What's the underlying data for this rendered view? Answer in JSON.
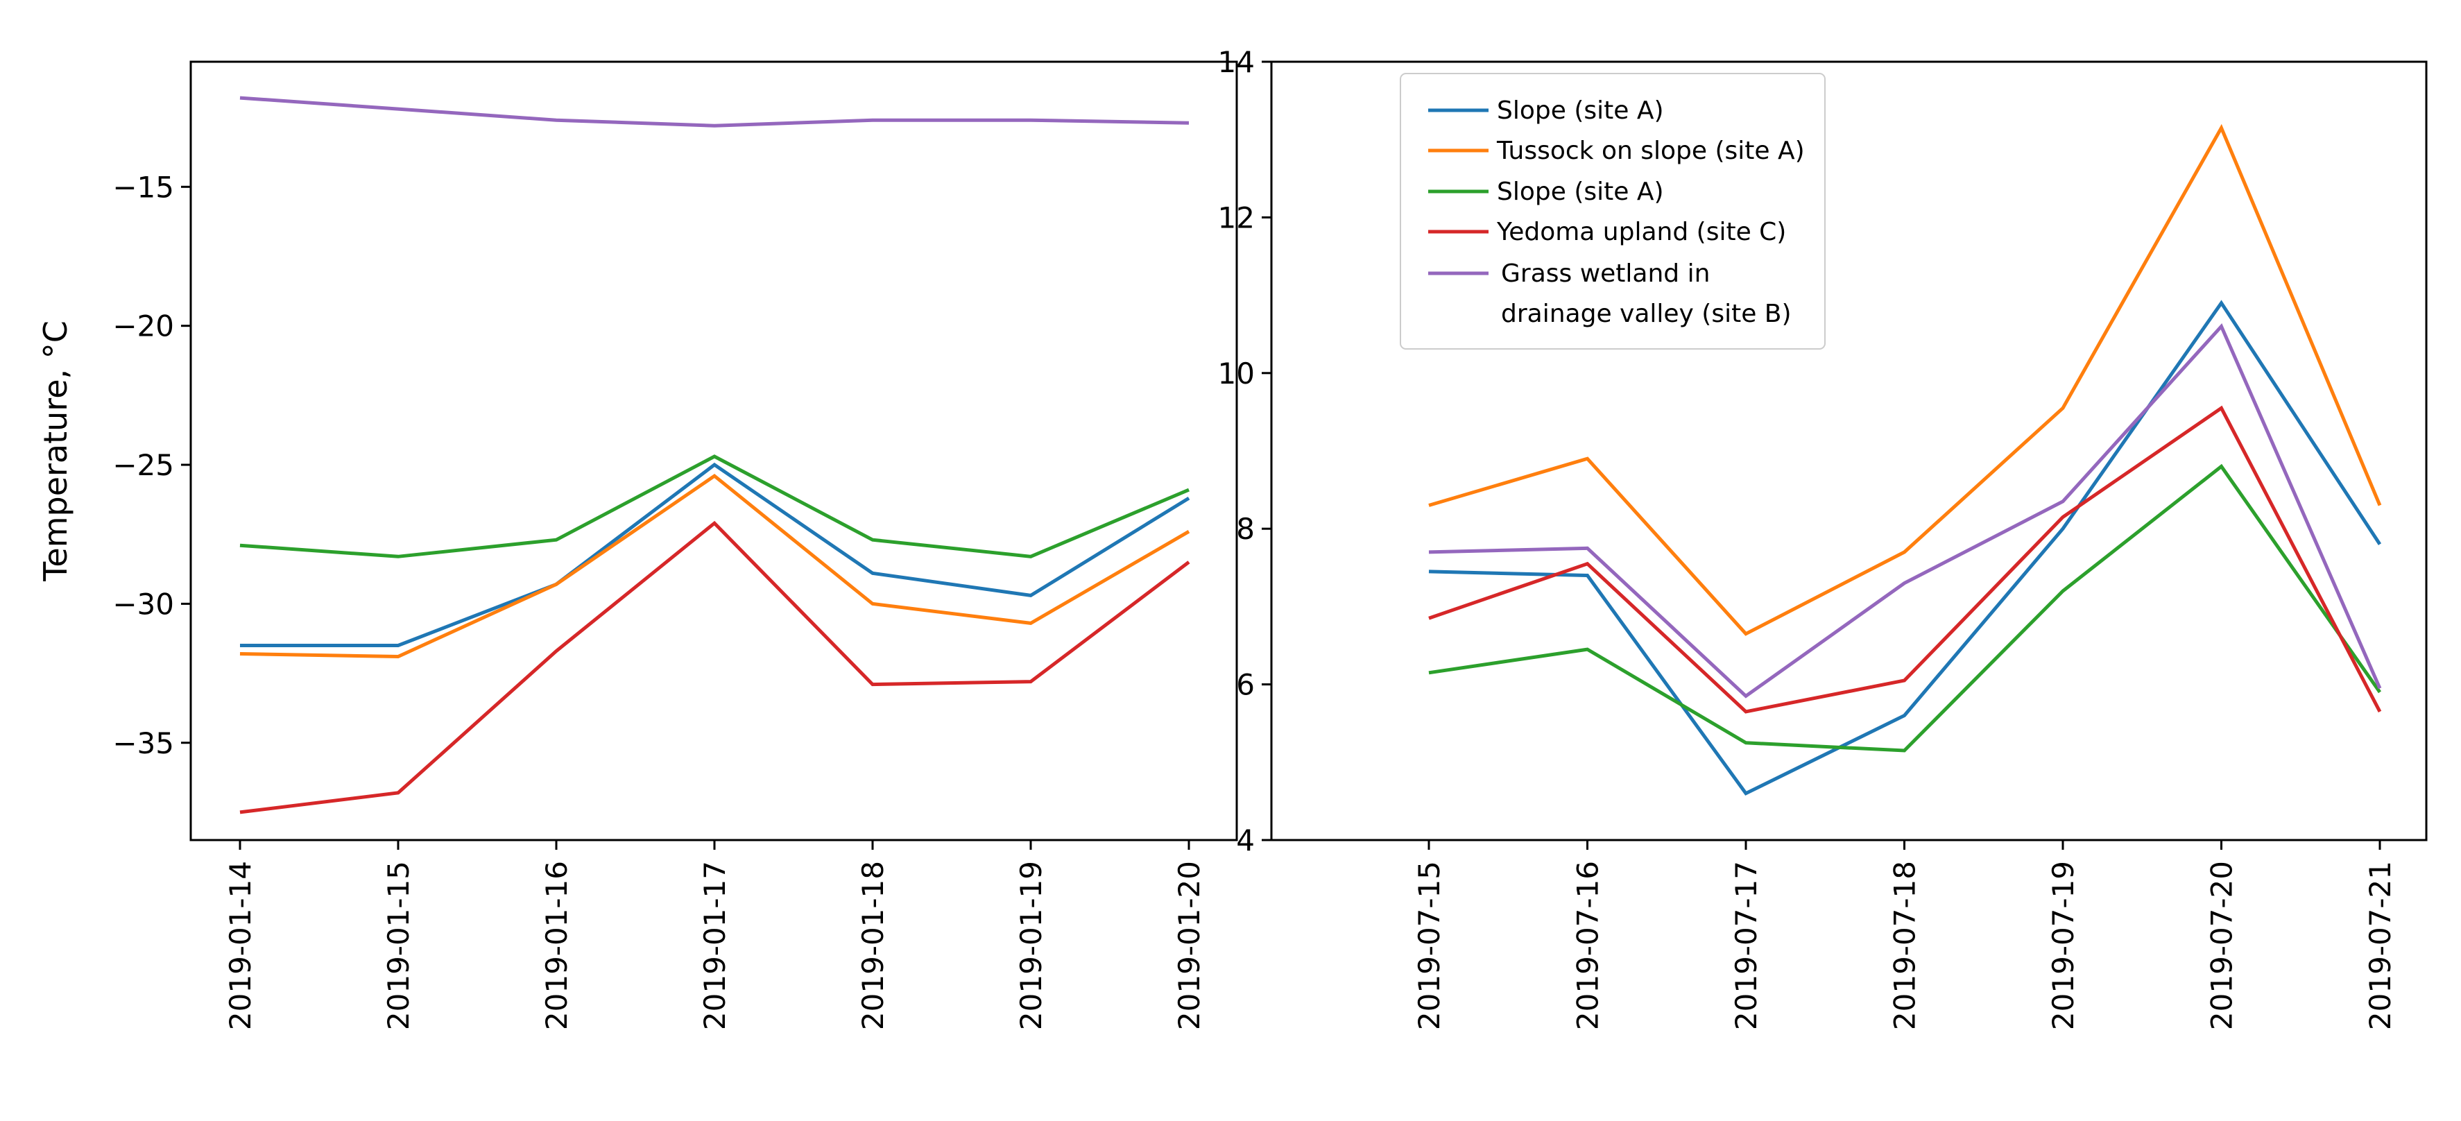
{
  "colors": {
    "c0": "#1f77b4",
    "c1": "#ff7f0e",
    "c2": "#2ca02c",
    "c3": "#d62728",
    "c4": "#9467bd"
  },
  "chart_data": [
    {
      "type": "line",
      "title": "",
      "xlabel": "",
      "ylabel": "Temperature, °C",
      "x": [
        "2019-01-14",
        "2019-01-15",
        "2019-01-16",
        "2019-01-17",
        "2019-01-18",
        "2019-01-19",
        "2019-01-20"
      ],
      "ylim": [
        -38.5,
        -10.5
      ],
      "yticks": [
        -35,
        -30,
        -25,
        -20,
        -15
      ],
      "yticklabels": [
        "−35",
        "−30",
        "−25",
        "−20",
        "−15"
      ],
      "grid": false,
      "series": [
        {
          "color": "#1f77b4",
          "values": [
            -31.5,
            -31.5,
            -29.3,
            -25.0,
            -28.9,
            -29.7,
            -26.2
          ]
        },
        {
          "color": "#ff7f0e",
          "values": [
            -31.8,
            -31.9,
            -29.3,
            -25.4,
            -30.0,
            -30.7,
            -27.4
          ]
        },
        {
          "color": "#2ca02c",
          "values": [
            -27.9,
            -28.3,
            -27.7,
            -24.7,
            -27.7,
            -28.3,
            -25.9
          ]
        },
        {
          "color": "#d62728",
          "values": [
            -37.5,
            -36.8,
            -31.7,
            -27.1,
            -32.9,
            -32.8,
            -28.5
          ]
        },
        {
          "color": "#9467bd",
          "values": [
            -11.8,
            -12.2,
            -12.6,
            -12.8,
            -12.6,
            -12.6,
            -12.7
          ]
        }
      ]
    },
    {
      "type": "line",
      "title": "",
      "xlabel": "",
      "ylabel": "",
      "x": [
        "2019-07-15",
        "2019-07-16",
        "2019-07-17",
        "2019-07-18",
        "2019-07-19",
        "2019-07-20",
        "2019-07-21"
      ],
      "ylim": [
        4,
        14
      ],
      "yticks": [
        4,
        6,
        8,
        10,
        12,
        14
      ],
      "yticklabels": [
        "4",
        "6",
        "8",
        "10",
        "12",
        "14"
      ],
      "grid": false,
      "legend_position": "top-left",
      "series": [
        {
          "name": "Slope (site A)",
          "color": "#1f77b4",
          "values": [
            7.45,
            7.4,
            4.6,
            5.6,
            8.0,
            10.9,
            7.8
          ]
        },
        {
          "name": "Tussock on slope (site A)",
          "color": "#ff7f0e",
          "values": [
            8.3,
            8.9,
            6.65,
            7.7,
            9.55,
            13.15,
            8.3
          ]
        },
        {
          "name": "Slope (site A)",
          "color": "#2ca02c",
          "values": [
            6.15,
            6.45,
            5.25,
            5.15,
            7.2,
            8.8,
            5.9
          ]
        },
        {
          "name": "Yedoma upland (site C)",
          "color": "#d62728",
          "values": [
            6.85,
            7.55,
            5.65,
            6.05,
            8.15,
            9.55,
            5.65
          ]
        },
        {
          "name": "Grass wetland in\ndrainage valley (site B)",
          "color": "#9467bd",
          "values": [
            7.7,
            7.75,
            5.85,
            7.3,
            8.35,
            10.6,
            5.95
          ]
        }
      ]
    }
  ]
}
